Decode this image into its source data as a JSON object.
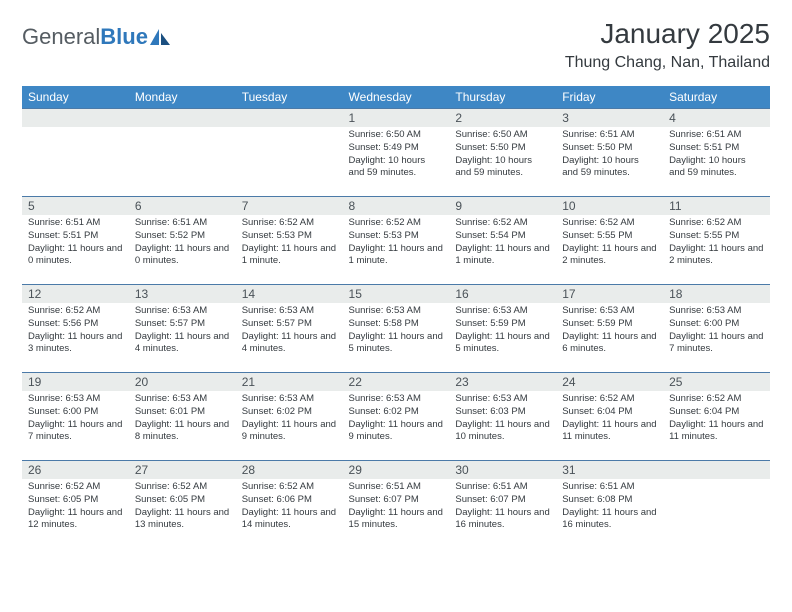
{
  "logo": {
    "word1": "General",
    "word2": "Blue"
  },
  "title": "January 2025",
  "location": "Thung Chang, Nan, Thailand",
  "colors": {
    "header_bg": "#3e87c5",
    "header_text": "#ffffff",
    "daynum_bg": "#e9eceb",
    "row_divider": "#4b7aa8",
    "body_text": "#343a3f",
    "logo_gray": "#555c62",
    "logo_blue": "#2f78bb",
    "page_bg": "#ffffff"
  },
  "typography": {
    "title_fontsize": 28,
    "location_fontsize": 16,
    "dayheader_fontsize": 12,
    "daynum_fontsize": 12,
    "cell_fontsize": 9.5
  },
  "dayHeaders": [
    "Sunday",
    "Monday",
    "Tuesday",
    "Wednesday",
    "Thursday",
    "Friday",
    "Saturday"
  ],
  "labels": {
    "sunrise": "Sunrise:",
    "sunset": "Sunset:",
    "daylight": "Daylight:"
  },
  "weeks": [
    [
      {
        "day": "",
        "sunrise": "",
        "sunset": "",
        "daylight": ""
      },
      {
        "day": "",
        "sunrise": "",
        "sunset": "",
        "daylight": ""
      },
      {
        "day": "",
        "sunrise": "",
        "sunset": "",
        "daylight": ""
      },
      {
        "day": "1",
        "sunrise": "6:50 AM",
        "sunset": "5:49 PM",
        "daylight": "10 hours and 59 minutes."
      },
      {
        "day": "2",
        "sunrise": "6:50 AM",
        "sunset": "5:50 PM",
        "daylight": "10 hours and 59 minutes."
      },
      {
        "day": "3",
        "sunrise": "6:51 AM",
        "sunset": "5:50 PM",
        "daylight": "10 hours and 59 minutes."
      },
      {
        "day": "4",
        "sunrise": "6:51 AM",
        "sunset": "5:51 PM",
        "daylight": "10 hours and 59 minutes."
      }
    ],
    [
      {
        "day": "5",
        "sunrise": "6:51 AM",
        "sunset": "5:51 PM",
        "daylight": "11 hours and 0 minutes."
      },
      {
        "day": "6",
        "sunrise": "6:51 AM",
        "sunset": "5:52 PM",
        "daylight": "11 hours and 0 minutes."
      },
      {
        "day": "7",
        "sunrise": "6:52 AM",
        "sunset": "5:53 PM",
        "daylight": "11 hours and 1 minute."
      },
      {
        "day": "8",
        "sunrise": "6:52 AM",
        "sunset": "5:53 PM",
        "daylight": "11 hours and 1 minute."
      },
      {
        "day": "9",
        "sunrise": "6:52 AM",
        "sunset": "5:54 PM",
        "daylight": "11 hours and 1 minute."
      },
      {
        "day": "10",
        "sunrise": "6:52 AM",
        "sunset": "5:55 PM",
        "daylight": "11 hours and 2 minutes."
      },
      {
        "day": "11",
        "sunrise": "6:52 AM",
        "sunset": "5:55 PM",
        "daylight": "11 hours and 2 minutes."
      }
    ],
    [
      {
        "day": "12",
        "sunrise": "6:52 AM",
        "sunset": "5:56 PM",
        "daylight": "11 hours and 3 minutes."
      },
      {
        "day": "13",
        "sunrise": "6:53 AM",
        "sunset": "5:57 PM",
        "daylight": "11 hours and 4 minutes."
      },
      {
        "day": "14",
        "sunrise": "6:53 AM",
        "sunset": "5:57 PM",
        "daylight": "11 hours and 4 minutes."
      },
      {
        "day": "15",
        "sunrise": "6:53 AM",
        "sunset": "5:58 PM",
        "daylight": "11 hours and 5 minutes."
      },
      {
        "day": "16",
        "sunrise": "6:53 AM",
        "sunset": "5:59 PM",
        "daylight": "11 hours and 5 minutes."
      },
      {
        "day": "17",
        "sunrise": "6:53 AM",
        "sunset": "5:59 PM",
        "daylight": "11 hours and 6 minutes."
      },
      {
        "day": "18",
        "sunrise": "6:53 AM",
        "sunset": "6:00 PM",
        "daylight": "11 hours and 7 minutes."
      }
    ],
    [
      {
        "day": "19",
        "sunrise": "6:53 AM",
        "sunset": "6:00 PM",
        "daylight": "11 hours and 7 minutes."
      },
      {
        "day": "20",
        "sunrise": "6:53 AM",
        "sunset": "6:01 PM",
        "daylight": "11 hours and 8 minutes."
      },
      {
        "day": "21",
        "sunrise": "6:53 AM",
        "sunset": "6:02 PM",
        "daylight": "11 hours and 9 minutes."
      },
      {
        "day": "22",
        "sunrise": "6:53 AM",
        "sunset": "6:02 PM",
        "daylight": "11 hours and 9 minutes."
      },
      {
        "day": "23",
        "sunrise": "6:53 AM",
        "sunset": "6:03 PM",
        "daylight": "11 hours and 10 minutes."
      },
      {
        "day": "24",
        "sunrise": "6:52 AM",
        "sunset": "6:04 PM",
        "daylight": "11 hours and 11 minutes."
      },
      {
        "day": "25",
        "sunrise": "6:52 AM",
        "sunset": "6:04 PM",
        "daylight": "11 hours and 11 minutes."
      }
    ],
    [
      {
        "day": "26",
        "sunrise": "6:52 AM",
        "sunset": "6:05 PM",
        "daylight": "11 hours and 12 minutes."
      },
      {
        "day": "27",
        "sunrise": "6:52 AM",
        "sunset": "6:05 PM",
        "daylight": "11 hours and 13 minutes."
      },
      {
        "day": "28",
        "sunrise": "6:52 AM",
        "sunset": "6:06 PM",
        "daylight": "11 hours and 14 minutes."
      },
      {
        "day": "29",
        "sunrise": "6:51 AM",
        "sunset": "6:07 PM",
        "daylight": "11 hours and 15 minutes."
      },
      {
        "day": "30",
        "sunrise": "6:51 AM",
        "sunset": "6:07 PM",
        "daylight": "11 hours and 16 minutes."
      },
      {
        "day": "31",
        "sunrise": "6:51 AM",
        "sunset": "6:08 PM",
        "daylight": "11 hours and 16 minutes."
      },
      {
        "day": "",
        "sunrise": "",
        "sunset": "",
        "daylight": ""
      }
    ]
  ]
}
